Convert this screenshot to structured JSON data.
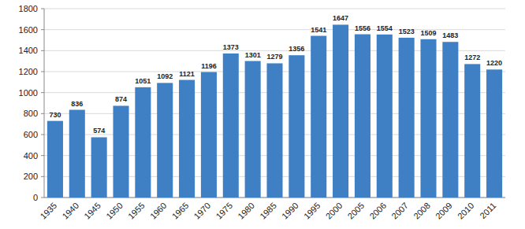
{
  "chart_data": {
    "type": "bar",
    "categories": [
      "1935",
      "1940",
      "1945",
      "1950",
      "1955",
      "1960",
      "1965",
      "1970",
      "1975",
      "1980",
      "1985",
      "1990",
      "1995",
      "2000",
      "2005",
      "2006",
      "2007",
      "2008",
      "2009",
      "2010",
      "2011"
    ],
    "values": [
      730,
      836,
      574,
      874,
      1051,
      1092,
      1121,
      1196,
      1373,
      1301,
      1279,
      1356,
      1541,
      1647,
      1556,
      1554,
      1523,
      1509,
      1483,
      1272,
      1220
    ],
    "color": "#3f7fc4",
    "ylim": [
      0,
      1800
    ],
    "yticks": [
      0,
      200,
      400,
      600,
      800,
      1000,
      1200,
      1400,
      1600,
      1800
    ],
    "grid": true,
    "data_labels": true
  }
}
